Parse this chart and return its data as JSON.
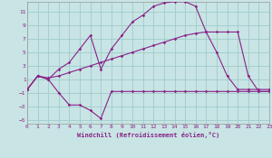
{
  "background_color": "#c8e4e4",
  "grid_color": "#a0cccc",
  "line_color": "#882288",
  "xlabel": "Windchill (Refroidissement éolien,°C)",
  "xlim": [
    0,
    23
  ],
  "ylim": [
    -5.5,
    12.5
  ],
  "xticks": [
    0,
    1,
    2,
    3,
    4,
    5,
    6,
    7,
    8,
    9,
    10,
    11,
    12,
    13,
    14,
    15,
    16,
    17,
    18,
    19,
    20,
    21,
    22,
    23
  ],
  "yticks": [
    -5,
    -3,
    -1,
    1,
    3,
    5,
    7,
    9,
    11
  ],
  "line1_x": [
    0,
    1,
    2,
    3,
    4,
    5,
    6,
    7,
    8,
    9,
    10,
    11,
    12,
    13,
    14,
    15,
    16,
    17,
    18,
    19,
    20,
    21,
    22,
    23
  ],
  "line1_y": [
    -0.5,
    1.5,
    1.0,
    -1.0,
    -2.8,
    -2.8,
    -3.6,
    -4.8,
    -0.8,
    -0.8,
    -0.8,
    -0.8,
    -0.8,
    -0.8,
    -0.8,
    -0.8,
    -0.8,
    -0.8,
    -0.8,
    -0.8,
    -0.8,
    -0.8,
    -0.8,
    -0.8
  ],
  "line2_x": [
    0,
    1,
    2,
    3,
    4,
    5,
    6,
    7,
    8,
    9,
    10,
    11,
    12,
    13,
    14,
    15,
    16,
    17,
    18,
    19,
    20,
    21,
    22,
    23
  ],
  "line2_y": [
    -0.5,
    1.5,
    1.0,
    2.5,
    3.5,
    5.5,
    7.5,
    2.5,
    5.5,
    7.5,
    9.5,
    10.5,
    11.8,
    12.3,
    12.5,
    12.5,
    11.8,
    8.0,
    5.0,
    1.5,
    -0.5,
    -0.5,
    -0.5,
    -0.5
  ],
  "line3_x": [
    0,
    1,
    2,
    3,
    4,
    5,
    6,
    7,
    8,
    9,
    10,
    11,
    12,
    13,
    14,
    15,
    16,
    17,
    18,
    19,
    20,
    21,
    22,
    23
  ],
  "line3_y": [
    -0.5,
    1.5,
    1.2,
    1.5,
    2.0,
    2.5,
    3.0,
    3.5,
    4.0,
    4.5,
    5.0,
    5.5,
    6.0,
    6.5,
    7.0,
    7.5,
    7.8,
    8.0,
    8.0,
    8.0,
    8.0,
    1.5,
    -0.8,
    -0.8
  ]
}
